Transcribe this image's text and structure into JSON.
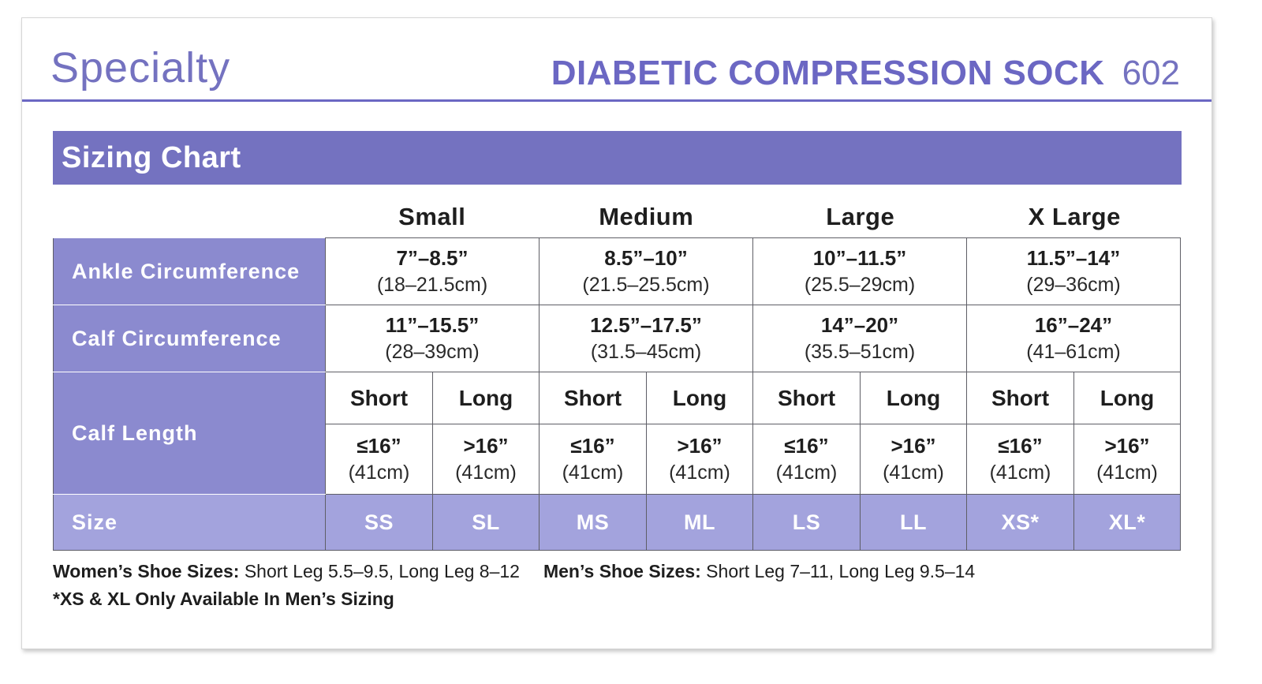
{
  "header": {
    "brand": "Specialty",
    "product_name": "DIABETIC COMPRESSION SOCK",
    "product_code": "602"
  },
  "chart": {
    "title": "Sizing Chart",
    "sizes": [
      "Small",
      "Medium",
      "Large",
      "X Large"
    ],
    "rows": {
      "ankle": {
        "label": "Ankle Circumference",
        "values": [
          {
            "in": "7”–8.5”",
            "cm": "(18–21.5cm)"
          },
          {
            "in": "8.5”–10”",
            "cm": "(21.5–25.5cm)"
          },
          {
            "in": "10”–11.5”",
            "cm": "(25.5–29cm)"
          },
          {
            "in": "11.5”–14”",
            "cm": "(29–36cm)"
          }
        ]
      },
      "calf": {
        "label": "Calf Circumference",
        "values": [
          {
            "in": "11”–15.5”",
            "cm": "(28–39cm)"
          },
          {
            "in": "12.5”–17.5”",
            "cm": "(31.5–45cm)"
          },
          {
            "in": "14”–20”",
            "cm": "(35.5–51cm)"
          },
          {
            "in": "16”–24”",
            "cm": "(41–61cm)"
          }
        ]
      },
      "length": {
        "label": "Calf Length",
        "short_label": "Short",
        "long_label": "Long",
        "short": {
          "in": "≤16”",
          "cm": "(41cm)"
        },
        "long": {
          "in": ">16”",
          "cm": "(41cm)"
        }
      },
      "size": {
        "label": "Size",
        "codes": [
          "SS",
          "SL",
          "MS",
          "ML",
          "LS",
          "LL",
          "XS*",
          "XL*"
        ]
      }
    }
  },
  "notes": {
    "womens_label": "Women’s Shoe Sizes:",
    "womens_text": " Short Leg 5.5–9.5, Long Leg 8–12",
    "mens_label": "Men’s Shoe Sizes:",
    "mens_text": " Short Leg 7–11, Long Leg 9.5–14",
    "footnote": "*XS & XL Only Available In Men’s Sizing"
  },
  "colors": {
    "accent": "#7472c0",
    "label_bg": "#8b8acf",
    "size_row_bg": "#a3a3dd"
  }
}
